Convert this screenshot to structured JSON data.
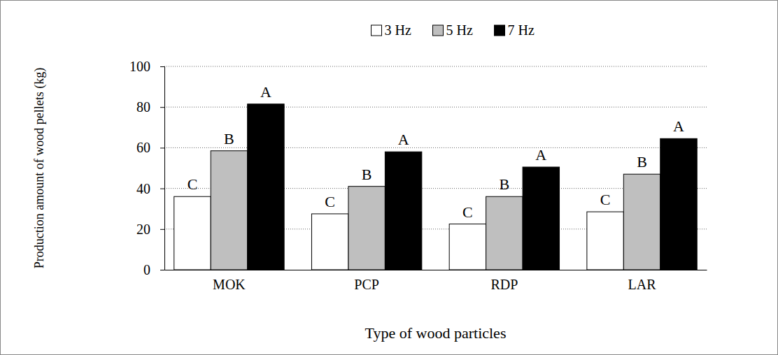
{
  "chart_data": {
    "type": "bar",
    "x_label": "Type of wood particles",
    "y_label": "Production amount of wood pellets (kg)",
    "categories": [
      "MOK",
      "PCP",
      "RDP",
      "LAR"
    ],
    "series": [
      {
        "name": "3 Hz",
        "color": "#ffffff",
        "values": [
          36,
          27.5,
          22.5,
          28.5
        ],
        "group_letters": [
          "C",
          "C",
          "C",
          "C"
        ]
      },
      {
        "name": "5 Hz",
        "color": "#bfbfbf",
        "values": [
          58.5,
          41,
          36,
          47
        ],
        "group_letters": [
          "B",
          "B",
          "B",
          "B"
        ]
      },
      {
        "name": "7 Hz",
        "color": "#000000",
        "values": [
          81.5,
          58,
          50.5,
          64.5
        ],
        "group_letters": [
          "A",
          "A",
          "A",
          "A"
        ]
      }
    ],
    "ylim": [
      0,
      100
    ],
    "yticks": [
      0,
      20,
      40,
      60,
      80,
      100
    ],
    "grid": true,
    "legend": "top"
  }
}
